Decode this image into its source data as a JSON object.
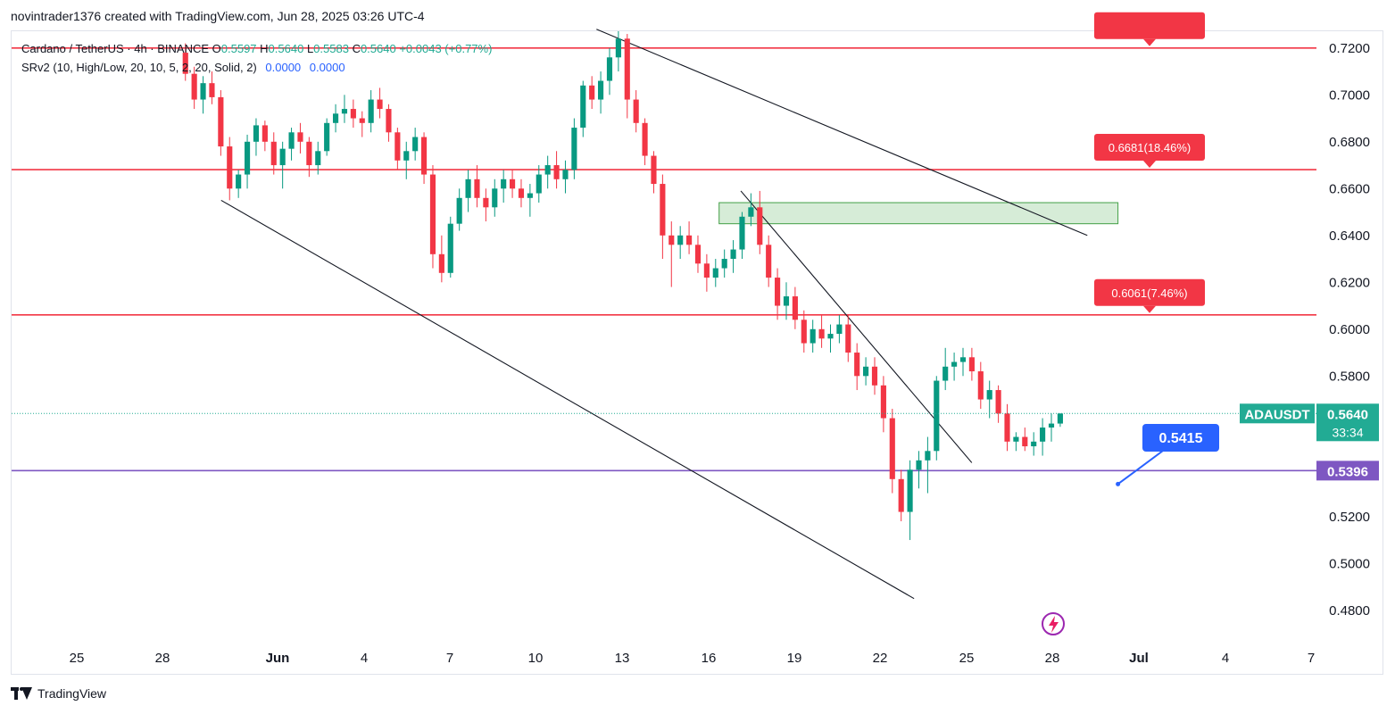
{
  "header": {
    "caption": "novintrader1376 created with TradingView.com, Jun 28, 2025 03:26 UTC-4"
  },
  "legend": {
    "symbol": "Cardano / TetherUS · 4h · BINANCE",
    "open_label": "O",
    "open": "0.5597",
    "high_label": "H",
    "high": "0.5640",
    "low_label": "L",
    "low": "0.5583",
    "close_label": "C",
    "close": "0.5640",
    "change": "+0.0043 (+0.77%)",
    "indicator": "SRv2 (10, High/Low, 20, 10, 5, 2, 20, Solid, 2)",
    "indicator_value_1": "0.0000",
    "indicator_value_2": "0.0000"
  },
  "footer": {
    "brand": "TradingView"
  },
  "colors": {
    "up": "#22ab94",
    "up_body": "#089981",
    "down": "#f23645",
    "resistance": "#f23645",
    "support": "#7e57c2",
    "zone": "#c8e6c9",
    "blue_label": "#2962ff",
    "price_tag": "#22ab94"
  },
  "chart_data": {
    "type": "candlestick",
    "symbol_tag": "ADAUSDT",
    "last_price": "0.5640",
    "countdown": "33:34",
    "y_axis": {
      "ylim": [
        0.47,
        0.725
      ],
      "ticks": [
        "0.7200",
        "0.7000",
        "0.6800",
        "0.6600",
        "0.6400",
        "0.6200",
        "0.6000",
        "0.5800",
        "0.5600",
        "0.5400",
        "0.5200",
        "0.5000",
        "0.4800"
      ]
    },
    "x_axis": {
      "ticks": [
        "25",
        "28",
        "Jun",
        "4",
        "7",
        "10",
        "13",
        "16",
        "19",
        "22",
        "25",
        "28",
        "Jul",
        "4",
        "7"
      ]
    },
    "horizontal_lines": [
      {
        "price": 0.72,
        "label": "",
        "kind": "resistance"
      },
      {
        "price": 0.6681,
        "label": "0.6681(18.46%)",
        "kind": "resistance"
      },
      {
        "price": 0.6061,
        "label": "0.6061(7.46%)",
        "kind": "resistance"
      },
      {
        "price": 0.5396,
        "label": "0.5396",
        "kind": "support"
      }
    ],
    "zone": {
      "from": "2025-06-16",
      "to": "2025-06-30",
      "price_low": 0.645,
      "price_high": 0.654
    },
    "trendlines": [
      {
        "from": [
          "2025-05-30",
          0.655
        ],
        "to": [
          "2025-06-23",
          0.485
        ],
        "name": "lower-channel"
      },
      {
        "from": [
          "2025-06-12",
          0.728
        ],
        "to": [
          "2025-06-29",
          0.64
        ],
        "name": "upper-channel"
      },
      {
        "from": [
          "2025-06-17",
          0.659
        ],
        "to": [
          "2025-06-25",
          0.543
        ],
        "name": "inner-trendline"
      }
    ],
    "callout": {
      "label": "0.5415",
      "price": 0.5415,
      "date": "2025-06-30"
    },
    "candles_ohlc": [
      [
        0.718,
        0.722,
        0.706,
        0.709
      ],
      [
        0.709,
        0.712,
        0.694,
        0.698
      ],
      [
        0.698,
        0.708,
        0.692,
        0.705
      ],
      [
        0.705,
        0.71,
        0.696,
        0.699
      ],
      [
        0.699,
        0.702,
        0.674,
        0.678
      ],
      [
        0.678,
        0.682,
        0.655,
        0.66
      ],
      [
        0.66,
        0.668,
        0.656,
        0.666
      ],
      [
        0.666,
        0.683,
        0.66,
        0.68
      ],
      [
        0.68,
        0.69,
        0.674,
        0.687
      ],
      [
        0.687,
        0.689,
        0.676,
        0.68
      ],
      [
        0.68,
        0.684,
        0.666,
        0.67
      ],
      [
        0.67,
        0.68,
        0.66,
        0.677
      ],
      [
        0.677,
        0.686,
        0.672,
        0.684
      ],
      [
        0.684,
        0.688,
        0.675,
        0.68
      ],
      [
        0.68,
        0.682,
        0.665,
        0.67
      ],
      [
        0.67,
        0.68,
        0.666,
        0.676
      ],
      [
        0.676,
        0.69,
        0.674,
        0.688
      ],
      [
        0.688,
        0.696,
        0.684,
        0.692
      ],
      [
        0.692,
        0.7,
        0.688,
        0.694
      ],
      [
        0.694,
        0.698,
        0.686,
        0.69
      ],
      [
        0.69,
        0.693,
        0.682,
        0.688
      ],
      [
        0.688,
        0.702,
        0.684,
        0.698
      ],
      [
        0.698,
        0.703,
        0.69,
        0.694
      ],
      [
        0.694,
        0.696,
        0.68,
        0.684
      ],
      [
        0.684,
        0.686,
        0.668,
        0.672
      ],
      [
        0.672,
        0.68,
        0.664,
        0.676
      ],
      [
        0.676,
        0.686,
        0.672,
        0.682
      ],
      [
        0.682,
        0.684,
        0.662,
        0.666
      ],
      [
        0.666,
        0.67,
        0.626,
        0.632
      ],
      [
        0.632,
        0.64,
        0.62,
        0.624
      ],
      [
        0.624,
        0.648,
        0.622,
        0.645
      ],
      [
        0.645,
        0.66,
        0.642,
        0.656
      ],
      [
        0.656,
        0.668,
        0.65,
        0.664
      ],
      [
        0.664,
        0.67,
        0.652,
        0.656
      ],
      [
        0.656,
        0.66,
        0.646,
        0.652
      ],
      [
        0.652,
        0.664,
        0.648,
        0.66
      ],
      [
        0.66,
        0.668,
        0.654,
        0.664
      ],
      [
        0.664,
        0.668,
        0.656,
        0.66
      ],
      [
        0.66,
        0.664,
        0.652,
        0.656
      ],
      [
        0.656,
        0.662,
        0.648,
        0.658
      ],
      [
        0.658,
        0.67,
        0.654,
        0.666
      ],
      [
        0.666,
        0.674,
        0.66,
        0.67
      ],
      [
        0.67,
        0.676,
        0.66,
        0.664
      ],
      [
        0.664,
        0.672,
        0.658,
        0.668
      ],
      [
        0.668,
        0.69,
        0.664,
        0.686
      ],
      [
        0.686,
        0.706,
        0.682,
        0.704
      ],
      [
        0.704,
        0.708,
        0.694,
        0.698
      ],
      [
        0.698,
        0.71,
        0.692,
        0.706
      ],
      [
        0.706,
        0.72,
        0.7,
        0.716
      ],
      [
        0.716,
        0.728,
        0.71,
        0.724
      ],
      [
        0.724,
        0.726,
        0.69,
        0.698
      ],
      [
        0.698,
        0.702,
        0.684,
        0.688
      ],
      [
        0.688,
        0.69,
        0.67,
        0.674
      ],
      [
        0.674,
        0.676,
        0.658,
        0.662
      ],
      [
        0.662,
        0.666,
        0.63,
        0.64
      ],
      [
        0.64,
        0.646,
        0.618,
        0.636
      ],
      [
        0.636,
        0.644,
        0.63,
        0.64
      ],
      [
        0.64,
        0.646,
        0.632,
        0.636
      ],
      [
        0.636,
        0.64,
        0.624,
        0.628
      ],
      [
        0.628,
        0.632,
        0.616,
        0.622
      ],
      [
        0.622,
        0.63,
        0.618,
        0.626
      ],
      [
        0.626,
        0.634,
        0.622,
        0.63
      ],
      [
        0.63,
        0.638,
        0.624,
        0.634
      ],
      [
        0.634,
        0.65,
        0.63,
        0.648
      ],
      [
        0.648,
        0.658,
        0.644,
        0.652
      ],
      [
        0.652,
        0.659,
        0.632,
        0.636
      ],
      [
        0.636,
        0.64,
        0.618,
        0.622
      ],
      [
        0.622,
        0.626,
        0.604,
        0.61
      ],
      [
        0.61,
        0.62,
        0.604,
        0.614
      ],
      [
        0.614,
        0.618,
        0.6,
        0.604
      ],
      [
        0.604,
        0.608,
        0.59,
        0.594
      ],
      [
        0.594,
        0.604,
        0.59,
        0.6
      ],
      [
        0.6,
        0.606,
        0.592,
        0.596
      ],
      [
        0.596,
        0.602,
        0.59,
        0.598
      ],
      [
        0.598,
        0.606,
        0.594,
        0.602
      ],
      [
        0.602,
        0.606,
        0.586,
        0.59
      ],
      [
        0.59,
        0.594,
        0.574,
        0.58
      ],
      [
        0.58,
        0.588,
        0.576,
        0.584
      ],
      [
        0.584,
        0.588,
        0.572,
        0.576
      ],
      [
        0.576,
        0.58,
        0.556,
        0.562
      ],
      [
        0.562,
        0.566,
        0.53,
        0.536
      ],
      [
        0.536,
        0.54,
        0.518,
        0.522
      ],
      [
        0.522,
        0.544,
        0.51,
        0.54
      ],
      [
        0.54,
        0.548,
        0.532,
        0.544
      ],
      [
        0.544,
        0.554,
        0.53,
        0.548
      ],
      [
        0.548,
        0.58,
        0.544,
        0.578
      ],
      [
        0.578,
        0.592,
        0.574,
        0.584
      ],
      [
        0.584,
        0.59,
        0.578,
        0.586
      ],
      [
        0.586,
        0.592,
        0.58,
        0.588
      ],
      [
        0.588,
        0.592,
        0.578,
        0.582
      ],
      [
        0.582,
        0.586,
        0.566,
        0.57
      ],
      [
        0.57,
        0.578,
        0.562,
        0.574
      ],
      [
        0.574,
        0.576,
        0.56,
        0.564
      ],
      [
        0.564,
        0.568,
        0.548,
        0.552
      ],
      [
        0.552,
        0.556,
        0.548,
        0.554
      ],
      [
        0.554,
        0.558,
        0.548,
        0.55
      ],
      [
        0.55,
        0.556,
        0.546,
        0.552
      ],
      [
        0.552,
        0.562,
        0.546,
        0.558
      ],
      [
        0.558,
        0.564,
        0.552,
        0.5597
      ],
      [
        0.5597,
        0.564,
        0.5583,
        0.564
      ]
    ],
    "candles_start": "2025-05-30",
    "candles_end": "2025-06-28"
  }
}
